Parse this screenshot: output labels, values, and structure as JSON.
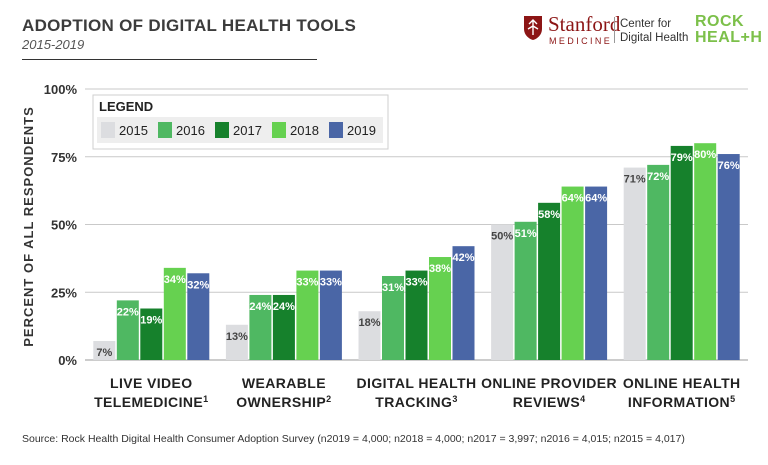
{
  "header": {
    "title": "ADOPTION OF DIGITAL HEALTH TOOLS",
    "subtitle": "2015-2019"
  },
  "logos": {
    "stanford_name": "Stanford",
    "stanford_medicine": "MEDICINE",
    "center_line1": "Center for",
    "center_line2": "Digital Health",
    "rock_line1": "ROCK",
    "rock_line2": "HEAL+H"
  },
  "source": "Source: Rock Health Digital Health Consumer Adoption Survey (n2019 = 4,000;  n2018 = 4,000; n2017 = 3,997; n2016 = 4,015; n2015 = 4,017)",
  "chart_data": {
    "type": "bar",
    "ylabel": "PERCENT OF ALL RESPONDENTS",
    "ylim": [
      0,
      100
    ],
    "yticks": [
      "0%",
      "25%",
      "50%",
      "75%",
      "100%"
    ],
    "grid": true,
    "legend_title": "LEGEND",
    "legend_position": "top-left",
    "categories": [
      {
        "line1": "LIVE VIDEO",
        "line2": "TELEMEDICINE",
        "note": "1"
      },
      {
        "line1": "WEARABLE",
        "line2": "OWNERSHIP",
        "note": "2"
      },
      {
        "line1": "DIGITAL HEALTH",
        "line2": "TRACKING",
        "note": "3"
      },
      {
        "line1": "ONLINE PROVIDER",
        "line2": "REVIEWS",
        "note": "4"
      },
      {
        "line1": "ONLINE HEALTH",
        "line2": "INFORMATION",
        "note": "5"
      }
    ],
    "series": [
      {
        "name": "2015",
        "color": "#dcdde0",
        "label_color": "#444444",
        "values": [
          7,
          13,
          18,
          50,
          71
        ]
      },
      {
        "name": "2016",
        "color": "#4fb862",
        "label_color": "#ffffff",
        "values": [
          22,
          24,
          31,
          51,
          72
        ]
      },
      {
        "name": "2017",
        "color": "#16812c",
        "label_color": "#ffffff",
        "values": [
          19,
          24,
          33,
          58,
          79
        ]
      },
      {
        "name": "2018",
        "color": "#66d150",
        "label_color": "#ffffff",
        "values": [
          34,
          33,
          38,
          64,
          80
        ]
      },
      {
        "name": "2019",
        "color": "#4a66a6",
        "label_color": "#ffffff",
        "values": [
          32,
          33,
          42,
          64,
          76
        ]
      }
    ]
  }
}
